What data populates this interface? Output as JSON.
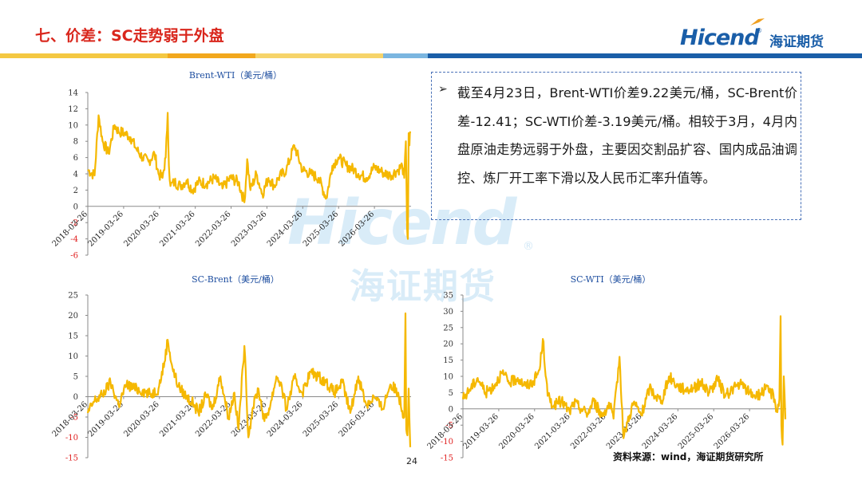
{
  "header": {
    "title": "七、价差：SC走势弱于外盘",
    "logo_text": "Hicend",
    "logo_cn": "海证期货",
    "logo_reg": "®"
  },
  "watermark": {
    "text": "Hicend",
    "cn": "海证期货",
    "reg": "®"
  },
  "colors": {
    "title": "#d9261c",
    "series": "#f5b800",
    "brand": "#1a5ea8",
    "chart_title": "#1f4fa0",
    "negative_tick": "#e02020"
  },
  "note": {
    "arrow": "➢",
    "text": "截至4月23日，Brent-WTI价差9.22美元/桶，SC-Brent价差-12.41；SC-WTI价差-3.19美元/桶。相较于3月，4月内盘原油走势远弱于外盘，主要因交割品扩容、国内成品油调控、炼厂开工率下滑以及人民币汇率升值等。"
  },
  "footer": {
    "source": "资料来源：wind，海证期货研究所",
    "page": "24"
  },
  "chart_data": [
    {
      "type": "line",
      "title": "Brent-WTI（美元/桶）",
      "x_tick_labels": [
        "2018-03-26",
        "2019-03-26",
        "2020-03-26",
        "2021-03-26",
        "2022-03-26",
        "2023-03-26",
        "2024-03-26",
        "2025-03-26",
        "2026-03-26"
      ],
      "ylim": [
        -6,
        14
      ],
      "y_ticks": [
        -6,
        -4,
        -2,
        0,
        2,
        4,
        6,
        8,
        10,
        12,
        14
      ],
      "grid": false,
      "series": [
        {
          "color": "#f5b800",
          "x": [
            2018.23,
            2018.4,
            2018.5,
            2018.6,
            2018.75,
            2018.9,
            2019.0,
            2019.15,
            2019.3,
            2019.45,
            2019.6,
            2019.75,
            2019.9,
            2020.0,
            2020.1,
            2020.18,
            2020.23,
            2020.26,
            2020.3,
            2020.4,
            2020.55,
            2020.7,
            2020.85,
            2021.0,
            2021.2,
            2021.4,
            2021.6,
            2021.8,
            2022.0,
            2022.15,
            2022.22,
            2022.3,
            2022.45,
            2022.6,
            2022.75,
            2022.9,
            2023.0,
            2023.2,
            2023.4,
            2023.6,
            2023.8,
            2024.0,
            2024.2,
            2024.35,
            2024.5,
            2024.7,
            2024.9,
            2025.0,
            2025.2,
            2025.4,
            2025.6,
            2025.8,
            2026.0,
            2026.1,
            2026.15,
            2026.19,
            2026.22,
            2026.24,
            2026.26,
            2026.28,
            2026.3
          ],
          "values": [
            4.5,
            3.8,
            11.2,
            8.0,
            6.5,
            10.0,
            9.2,
            9.0,
            8.5,
            7.0,
            6.0,
            5.5,
            6.5,
            4.0,
            3.5,
            6.0,
            11.5,
            5.0,
            2.5,
            3.0,
            2.5,
            3.2,
            2.0,
            3.0,
            2.8,
            3.5,
            2.2,
            3.5,
            3.0,
            0.5,
            5.8,
            2.0,
            4.0,
            1.5,
            3.5,
            2.5,
            3.5,
            4.5,
            7.5,
            4.5,
            4.0,
            3.5,
            1.0,
            5.0,
            6.0,
            5.0,
            4.5,
            4.0,
            3.5,
            4.8,
            4.2,
            3.8,
            4.5,
            5.0,
            3.5,
            8.0,
            -2.5,
            -4.0,
            9.0,
            7.5,
            9.22
          ]
        }
      ]
    },
    {
      "type": "line",
      "title": "SC-Brent（美元/桶）",
      "x_tick_labels": [
        "2018-03-26",
        "2019-03-26",
        "2020-03-26",
        "2021-03-26",
        "2022-03-26",
        "2023-03-26",
        "2024-03-26",
        "2025-03-26",
        "2026-03-26"
      ],
      "ylim": [
        -15,
        25
      ],
      "y_ticks": [
        -15,
        -10,
        -5,
        0,
        5,
        10,
        15,
        20,
        25
      ],
      "grid": false,
      "series": [
        {
          "color": "#f5b800",
          "x": [
            2018.23,
            2018.4,
            2018.6,
            2018.8,
            2019.0,
            2019.2,
            2019.4,
            2019.6,
            2019.8,
            2020.0,
            2020.15,
            2020.23,
            2020.35,
            2020.5,
            2020.7,
            2020.9,
            2021.0,
            2021.2,
            2021.35,
            2021.55,
            2021.75,
            2021.9,
            2022.0,
            2022.15,
            2022.25,
            2022.35,
            2022.5,
            2022.65,
            2022.8,
            2022.95,
            2023.05,
            2023.2,
            2023.4,
            2023.6,
            2023.8,
            2024.0,
            2024.2,
            2024.4,
            2024.6,
            2024.8,
            2025.0,
            2025.2,
            2025.4,
            2025.6,
            2025.8,
            2026.0,
            2026.1,
            2026.15,
            2026.18,
            2026.2,
            2026.23,
            2026.26,
            2026.3
          ],
          "values": [
            -4.0,
            -1.0,
            0.5,
            3.5,
            -2.0,
            3.0,
            2.0,
            1.5,
            0.5,
            2.0,
            8.5,
            14.0,
            7.0,
            2.5,
            0.0,
            -2.0,
            -4.0,
            0.5,
            -3.0,
            5.0,
            -5.0,
            1.0,
            -8.0,
            12.5,
            -10.0,
            -3.0,
            2.0,
            -6.0,
            -2.0,
            5.0,
            3.5,
            -3.0,
            4.5,
            1.0,
            6.0,
            5.0,
            3.5,
            1.0,
            3.5,
            -4.0,
            5.0,
            -2.0,
            0.0,
            -3.0,
            3.0,
            1.0,
            -3.5,
            -5.0,
            20.5,
            -8.0,
            -9.5,
            2.0,
            -12.41
          ]
        }
      ]
    },
    {
      "type": "line",
      "title": "SC-WTI（美元/桶）",
      "x_tick_labels": [
        "2018-03-26",
        "2019-03-26",
        "2020-03-26",
        "2021-03-26",
        "2022-03-26",
        "2023-03-26",
        "2024-03-26",
        "2025-03-26",
        "2026-03-26"
      ],
      "ylim": [
        -15,
        35
      ],
      "y_ticks": [
        -15,
        -10,
        -5,
        0,
        5,
        10,
        15,
        20,
        25,
        30,
        35
      ],
      "grid": false,
      "series": [
        {
          "color": "#f5b800",
          "x": [
            2018.23,
            2018.4,
            2018.6,
            2018.8,
            2019.0,
            2019.2,
            2019.4,
            2019.6,
            2019.8,
            2020.0,
            2020.15,
            2020.23,
            2020.35,
            2020.5,
            2020.7,
            2020.9,
            2021.0,
            2021.2,
            2021.35,
            2021.5,
            2021.7,
            2021.9,
            2022.0,
            2022.15,
            2022.25,
            2022.35,
            2022.5,
            2022.7,
            2022.9,
            2023.05,
            2023.2,
            2023.4,
            2023.6,
            2023.8,
            2024.0,
            2024.2,
            2024.4,
            2024.6,
            2024.8,
            2025.0,
            2025.2,
            2025.4,
            2025.6,
            2025.8,
            2026.0,
            2026.1,
            2026.15,
            2026.18,
            2026.2,
            2026.23,
            2026.26,
            2026.3
          ],
          "values": [
            3.0,
            6.0,
            9.5,
            5.0,
            7.0,
            11.0,
            8.0,
            9.5,
            7.0,
            8.5,
            12.0,
            21.5,
            4.0,
            1.0,
            2.5,
            -1.0,
            2.0,
            0.0,
            -1.5,
            2.5,
            -2.0,
            1.5,
            -3.0,
            16.0,
            -9.0,
            -4.0,
            2.0,
            -2.0,
            6.5,
            4.0,
            2.5,
            10.0,
            7.0,
            6.0,
            6.5,
            8.0,
            5.0,
            9.0,
            4.0,
            6.5,
            7.5,
            5.0,
            4.0,
            6.0,
            4.5,
            -1.0,
            3.0,
            28.5,
            -5.0,
            -11.0,
            10.0,
            -3.19
          ]
        }
      ]
    }
  ]
}
